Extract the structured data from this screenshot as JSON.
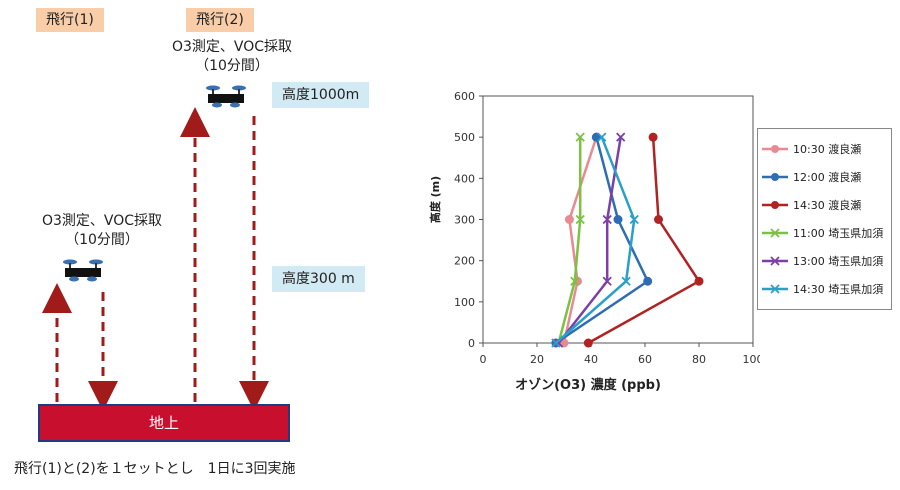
{
  "diagram": {
    "flight1_tag": "飛行(1)",
    "flight2_tag": "飛行(2)",
    "note_flight2_line1": "O3測定、VOC採取",
    "note_flight2_line2": "（10分間）",
    "note_flight1_line1": "O3測定、VOC採取",
    "note_flight1_line2": "（10分間）",
    "altitude_high": "高度1000m",
    "altitude_low": "高度300 m",
    "ground_label": "地上",
    "footer": "飛行(1)と(2)を１セットとし　1日に3回実施",
    "arrow_color": "#a11b1b"
  },
  "chart_data": {
    "type": "line",
    "xlabel": "オゾン(O3) 濃度 (ppb)",
    "ylabel": "高度 (m)",
    "xlim": [
      0,
      100
    ],
    "ylim": [
      0,
      600
    ],
    "x_ticks": [
      0,
      20,
      40,
      60,
      80,
      100
    ],
    "y_ticks": [
      0,
      100,
      200,
      300,
      400,
      500,
      600
    ],
    "grid": false,
    "legend_position": "right",
    "series": [
      {
        "name": "10:30 渡良瀬",
        "color": "#e88a8f",
        "marker": "circle",
        "points": [
          [
            30,
            0
          ],
          [
            35,
            150
          ],
          [
            32,
            300
          ],
          [
            42,
            500
          ]
        ]
      },
      {
        "name": "12:00 渡良瀬",
        "color": "#2e6db4",
        "marker": "circle",
        "points": [
          [
            27,
            0
          ],
          [
            61,
            150
          ],
          [
            50,
            300
          ],
          [
            42,
            500
          ]
        ]
      },
      {
        "name": "14:30 渡良瀬",
        "color": "#b22222",
        "marker": "circle",
        "points": [
          [
            39,
            0
          ],
          [
            80,
            150
          ],
          [
            65,
            300
          ],
          [
            63,
            500
          ]
        ]
      },
      {
        "name": "11:00 埼玉県加須",
        "color": "#7cc242",
        "marker": "x",
        "points": [
          [
            28,
            0
          ],
          [
            34,
            150
          ],
          [
            36,
            300
          ],
          [
            36,
            500
          ]
        ]
      },
      {
        "name": "13:00 埼玉県加須",
        "color": "#7b3fa8",
        "marker": "x",
        "points": [
          [
            28,
            0
          ],
          [
            46,
            150
          ],
          [
            46,
            300
          ],
          [
            51,
            500
          ]
        ]
      },
      {
        "name": "14:30 埼玉県加須",
        "color": "#2aa0c8",
        "marker": "x",
        "points": [
          [
            27,
            0
          ],
          [
            53,
            150
          ],
          [
            56,
            300
          ],
          [
            44,
            500
          ]
        ]
      }
    ]
  }
}
